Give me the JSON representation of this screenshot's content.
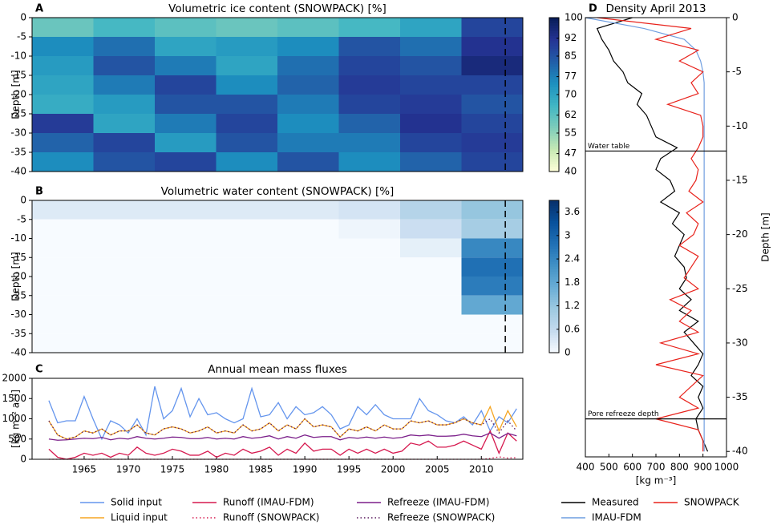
{
  "chart_data": [
    {
      "type": "heatmap",
      "panel": "A",
      "title": "Volumetric ice content (SNOWPACK) [%]",
      "ylabel": "Depth [m]",
      "xlim": [
        1959,
        2015
      ],
      "ylim": [
        -40,
        0
      ],
      "yticks": [
        0,
        -5,
        -10,
        -15,
        -20,
        -25,
        -30,
        -35,
        -40
      ],
      "xbins": [
        1959,
        1966,
        1973,
        1980,
        1987,
        1994,
        2001,
        2008,
        2015
      ],
      "ybins": [
        0,
        -5,
        -10,
        -15,
        -20,
        -25,
        -30,
        -35,
        -40
      ],
      "z": [
        [
          60,
          65,
          62,
          60,
          62,
          65,
          70,
          88
        ],
        [
          75,
          80,
          70,
          72,
          75,
          85,
          80,
          92
        ],
        [
          72,
          85,
          78,
          70,
          80,
          88,
          85,
          95
        ],
        [
          70,
          78,
          88,
          75,
          82,
          90,
          88,
          88
        ],
        [
          68,
          72,
          85,
          85,
          78,
          88,
          90,
          85
        ],
        [
          90,
          70,
          78,
          88,
          75,
          82,
          92,
          88
        ],
        [
          82,
          88,
          72,
          85,
          78,
          78,
          88,
          90
        ],
        [
          75,
          85,
          88,
          75,
          85,
          75,
          82,
          88
        ]
      ],
      "zlim": [
        40,
        100
      ],
      "zticks": [
        40,
        47,
        55,
        62,
        70,
        77,
        85,
        92,
        100
      ],
      "colors": [
        "#ffffd9",
        "#c7e9b4",
        "#7fcdbb",
        "#41b6c4",
        "#1d91c0",
        "#225ea8",
        "#253494",
        "#081d58"
      ],
      "vline": 2013
    },
    {
      "type": "heatmap",
      "panel": "B",
      "title": "Volumetric water content (SNOWPACK) [%]",
      "ylabel": "Depth [m]",
      "xlim": [
        1959,
        2015
      ],
      "ylim": [
        -40,
        0
      ],
      "yticks": [
        0,
        -5,
        -10,
        -15,
        -20,
        -25,
        -30,
        -35,
        -40
      ],
      "xbins": [
        1959,
        1966,
        1973,
        1980,
        1987,
        1994,
        2001,
        2008,
        2015
      ],
      "ybins": [
        0,
        -5,
        -10,
        -15,
        -20,
        -25,
        -30,
        -35,
        -40
      ],
      "z": [
        [
          0.3,
          0.3,
          0.3,
          0.3,
          0.3,
          0.4,
          0.8,
          1.2
        ],
        [
          0,
          0,
          0,
          0,
          0,
          0.1,
          0.5,
          1.0
        ],
        [
          0,
          0,
          0,
          0,
          0,
          0,
          0.2,
          2.4
        ],
        [
          0,
          0,
          0,
          0,
          0,
          0,
          0,
          2.8
        ],
        [
          0,
          0,
          0,
          0,
          0,
          0,
          0,
          2.6
        ],
        [
          0,
          0,
          0,
          0,
          0,
          0,
          0,
          1.8
        ],
        [
          0,
          0,
          0,
          0,
          0,
          0,
          0,
          0
        ],
        [
          0,
          0,
          0,
          0,
          0,
          0,
          0,
          0
        ]
      ],
      "zlim": [
        0,
        3.9
      ],
      "zticks": [
        0,
        0.6,
        1.2,
        1.8,
        2.4,
        3,
        3.6
      ],
      "colors": [
        "#f7fbff",
        "#c6dbef",
        "#9ecae1",
        "#6baed6",
        "#4292c6",
        "#2171b5",
        "#08519c",
        "#08306b"
      ],
      "vline": 2013
    },
    {
      "type": "line",
      "panel": "C",
      "title": "Annual mean mass fluxes",
      "ylabel": "[kg m⁻² a⁻¹]",
      "xlim": [
        1959.1,
        2014.7
      ],
      "xticks": [
        1965,
        1970,
        1975,
        1980,
        1985,
        1990,
        1995,
        2000,
        2005,
        2010
      ],
      "ylim": [
        0,
        2000
      ],
      "yticks": [
        0,
        500,
        1000,
        1500,
        2000
      ],
      "x": [
        1961,
        1962,
        1963,
        1964,
        1965,
        1966,
        1967,
        1968,
        1969,
        1970,
        1971,
        1972,
        1973,
        1974,
        1975,
        1976,
        1977,
        1978,
        1979,
        1980,
        1981,
        1982,
        1983,
        1984,
        1985,
        1986,
        1987,
        1988,
        1989,
        1990,
        1991,
        1992,
        1993,
        1994,
        1995,
        1996,
        1997,
        1998,
        1999,
        2000,
        2001,
        2002,
        2003,
        2004,
        2005,
        2006,
        2007,
        2008,
        2009,
        2010,
        2011,
        2012,
        2013,
        2014
      ],
      "series": [
        {
          "name": "Solid input",
          "color": "#6495ed",
          "dotted": false,
          "values": [
            1450,
            900,
            950,
            950,
            1550,
            1000,
            500,
            950,
            850,
            650,
            1000,
            600,
            1800,
            1000,
            1200,
            1750,
            1050,
            1500,
            1100,
            1150,
            1000,
            900,
            1000,
            1750,
            1050,
            1100,
            1400,
            1000,
            1300,
            1100,
            1150,
            1300,
            1100,
            750,
            850,
            1300,
            1100,
            1350,
            1100,
            1000,
            1000,
            1000,
            1500,
            1200,
            1100,
            950,
            900,
            1050,
            850,
            1200,
            700,
            1050,
            900,
            1250
          ]
        },
        {
          "name": "Liquid input",
          "color": "#f5a623",
          "dotted": false,
          "values": [
            950,
            600,
            500,
            550,
            700,
            650,
            750,
            600,
            700,
            700,
            850,
            650,
            600,
            750,
            800,
            750,
            650,
            700,
            800,
            650,
            700,
            650,
            850,
            700,
            750,
            900,
            700,
            850,
            750,
            1000,
            800,
            850,
            800,
            550,
            750,
            700,
            800,
            700,
            850,
            750,
            750,
            950,
            900,
            950,
            850,
            850,
            900,
            1000,
            900,
            850,
            1300,
            700,
            1200,
            800
          ]
        },
        {
          "name": "Runoff (IMAU-FDM)",
          "color": "#d6194f",
          "dotted": false,
          "values": [
            250,
            50,
            0,
            50,
            150,
            100,
            150,
            50,
            150,
            100,
            300,
            150,
            100,
            150,
            250,
            200,
            100,
            100,
            200,
            50,
            150,
            100,
            250,
            150,
            200,
            300,
            100,
            250,
            150,
            400,
            200,
            250,
            250,
            100,
            250,
            150,
            250,
            150,
            250,
            150,
            200,
            400,
            350,
            450,
            300,
            300,
            350,
            450,
            350,
            250,
            700,
            150,
            650,
            450
          ]
        },
        {
          "name": "Runoff (SNOWPACK)",
          "color": "#d6194f",
          "dotted": true,
          "values": [
            0,
            0,
            0,
            0,
            0,
            0,
            0,
            0,
            0,
            0,
            0,
            0,
            0,
            0,
            0,
            0,
            0,
            0,
            0,
            0,
            0,
            0,
            0,
            0,
            0,
            0,
            0,
            0,
            0,
            0,
            0,
            0,
            0,
            0,
            0,
            0,
            0,
            0,
            0,
            0,
            0,
            0,
            0,
            0,
            0,
            0,
            0,
            0,
            0,
            0,
            20,
            60,
            30,
            40
          ]
        },
        {
          "name": "Refreeze (IMAU-FDM)",
          "color": "#7b1f8a",
          "dotted": false,
          "values": [
            500,
            470,
            480,
            500,
            520,
            510,
            540,
            480,
            520,
            500,
            560,
            520,
            500,
            520,
            550,
            540,
            510,
            510,
            540,
            500,
            520,
            500,
            560,
            520,
            540,
            580,
            500,
            560,
            520,
            600,
            540,
            560,
            560,
            480,
            540,
            520,
            550,
            520,
            550,
            520,
            540,
            600,
            580,
            600,
            570,
            570,
            580,
            620,
            580,
            560,
            650,
            520,
            640,
            580
          ]
        },
        {
          "name": "Refreeze (SNOWPACK)",
          "color": "#5a1a5e",
          "dotted": true,
          "values": [
            950,
            600,
            500,
            550,
            700,
            650,
            750,
            600,
            700,
            700,
            850,
            650,
            600,
            750,
            800,
            750,
            650,
            700,
            800,
            650,
            700,
            650,
            850,
            700,
            750,
            900,
            700,
            850,
            750,
            1000,
            800,
            850,
            800,
            550,
            750,
            700,
            800,
            700,
            850,
            750,
            750,
            950,
            900,
            950,
            850,
            850,
            900,
            1000,
            900,
            850,
            1000,
            650,
            950,
            700
          ]
        }
      ]
    },
    {
      "type": "profile",
      "panel": "D",
      "title": "Density April 2013",
      "xlabel": "[kg m⁻³]",
      "ylabel": "Depth [m]",
      "xlim": [
        400,
        1000
      ],
      "xticks": [
        400,
        500,
        600,
        700,
        800,
        900,
        1000
      ],
      "ylim": [
        -40.5,
        0
      ],
      "yticks": [
        0,
        -5,
        -10,
        -15,
        -20,
        -25,
        -30,
        -35,
        -40
      ],
      "depth": [
        0,
        -1,
        -2,
        -3,
        -4,
        -5,
        -6,
        -7,
        -8,
        -9,
        -10,
        -11,
        -12,
        -13,
        -14,
        -15,
        -16,
        -17,
        -18,
        -19,
        -20,
        -21,
        -22,
        -23,
        -24,
        -25,
        -26,
        -27,
        -28,
        -29,
        -30,
        -31,
        -32,
        -33,
        -34,
        -35,
        -36,
        -37,
        -38,
        -39,
        -40
      ],
      "annotations": [
        {
          "text": "Water table",
          "depth": -12.3
        },
        {
          "text": "Pore refreeze depth",
          "depth": -37
        }
      ],
      "series": [
        {
          "name": "Measured",
          "color": "#000000",
          "values": [
            600,
            450,
            470,
            500,
            520,
            560,
            580,
            640,
            620,
            660,
            680,
            700,
            790,
            720,
            700,
            760,
            780,
            720,
            800,
            770,
            820,
            800,
            780,
            820,
            830,
            800,
            850,
            800,
            880,
            820,
            860,
            900,
            880,
            850,
            900,
            880,
            900,
            870,
            880,
            900,
            920
          ]
        },
        {
          "name": "IMAU-FDM",
          "color": "#6f9ee0",
          "values": [
            400,
            650,
            820,
            870,
            890,
            900,
            905,
            905,
            905,
            905,
            905,
            905,
            905,
            905,
            905,
            905,
            905,
            905,
            905,
            905,
            905,
            905,
            905,
            905,
            905,
            905,
            905,
            905,
            905,
            905,
            905,
            905,
            905,
            905,
            905,
            905,
            905,
            905,
            905,
            905,
            905
          ]
        },
        {
          "name": "SNOWPACK",
          "color": "#e8221b",
          "values": [
            450,
            850,
            700,
            880,
            800,
            900,
            850,
            880,
            750,
            890,
            900,
            900,
            880,
            850,
            880,
            870,
            840,
            900,
            830,
            880,
            860,
            800,
            880,
            850,
            820,
            880,
            760,
            850,
            800,
            880,
            720,
            880,
            700,
            900,
            850,
            800,
            880,
            700,
            880,
            900,
            900
          ]
        }
      ]
    }
  ]
}
